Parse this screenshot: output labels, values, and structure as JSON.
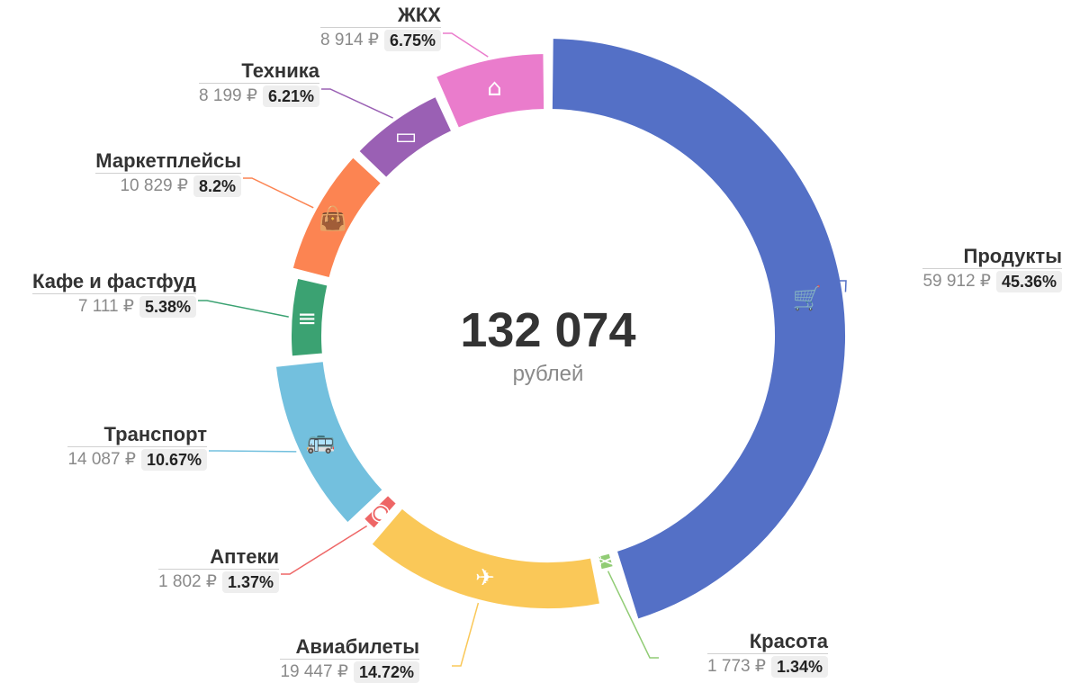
{
  "total": {
    "value": "132 074",
    "unit": "рублей"
  },
  "chart_data": {
    "type": "pie",
    "total": 132074,
    "slices": [
      {
        "label": "Продукты",
        "amount": "59 912 ₽",
        "value": 59912,
        "percent": "45.36%",
        "color": "#5470c6",
        "icon": "cart-icon"
      },
      {
        "label": "Красота",
        "amount": "1 773 ₽",
        "value": 1773,
        "percent": "1.34%",
        "color": "#91cc75",
        "icon": "scissors-icon"
      },
      {
        "label": "Авиабилеты",
        "amount": "19 447 ₽",
        "value": 19447,
        "percent": "14.72%",
        "color": "#fac858",
        "icon": "plane-icon"
      },
      {
        "label": "Аптеки",
        "amount": "1 802 ₽",
        "value": 1802,
        "percent": "1.37%",
        "color": "#ee6666",
        "icon": "pills-icon"
      },
      {
        "label": "Транспорт",
        "amount": "14 087 ₽",
        "value": 14087,
        "percent": "10.67%",
        "color": "#73c0de",
        "icon": "bus-icon"
      },
      {
        "label": "Кафе и фастфуд",
        "amount": "7 111 ₽",
        "value": 7111,
        "percent": "5.38%",
        "color": "#3ba272",
        "icon": "burger-icon"
      },
      {
        "label": "Маркетплейсы",
        "amount": "10 829 ₽",
        "value": 10829,
        "percent": "8.2%",
        "color": "#fc8452",
        "icon": "shopping-bag-icon"
      },
      {
        "label": "Техника",
        "amount": "8 199 ₽",
        "value": 8199,
        "percent": "6.21%",
        "color": "#9a60b4",
        "icon": "laptop-icon"
      },
      {
        "label": "ЖКХ",
        "amount": "8 914 ₽",
        "value": 8914,
        "percent": "6.75%",
        "color": "#ea7ccc",
        "icon": "home-icon"
      }
    ]
  }
}
